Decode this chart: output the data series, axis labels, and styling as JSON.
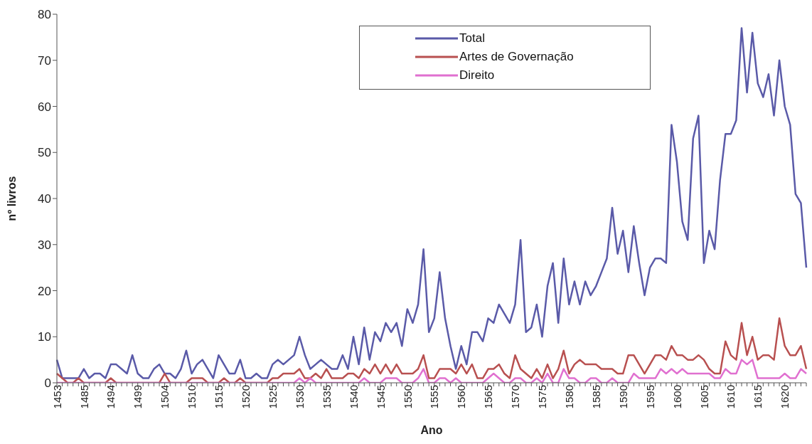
{
  "chart_data": {
    "type": "line",
    "xlabel": "Ano",
    "ylabel": "nº livros",
    "categories": [
      "1453",
      null,
      null,
      null,
      null,
      "1485",
      null,
      null,
      null,
      null,
      "1494",
      null,
      null,
      null,
      null,
      "1499",
      null,
      null,
      null,
      null,
      "1504",
      null,
      null,
      null,
      null,
      "1510",
      null,
      null,
      null,
      null,
      "1515",
      null,
      null,
      null,
      null,
      "1520",
      null,
      null,
      null,
      null,
      "1525",
      null,
      null,
      null,
      null,
      "1530",
      null,
      null,
      null,
      null,
      "1535",
      null,
      null,
      null,
      null,
      "1540",
      null,
      null,
      null,
      null,
      "1545",
      null,
      null,
      null,
      null,
      "1550",
      null,
      null,
      null,
      null,
      "1555",
      null,
      null,
      null,
      null,
      "1560",
      null,
      null,
      null,
      null,
      "1565",
      null,
      null,
      null,
      null,
      "1570",
      null,
      null,
      null,
      null,
      "1575",
      null,
      null,
      null,
      null,
      "1580",
      null,
      null,
      null,
      null,
      "1585",
      null,
      null,
      null,
      null,
      "1590",
      null,
      null,
      null,
      null,
      "1595",
      null,
      null,
      null,
      null,
      "1600",
      null,
      null,
      null,
      null,
      "1605",
      null,
      null,
      null,
      null,
      "1610",
      null,
      null,
      null,
      null,
      "1615",
      null,
      null,
      null,
      null,
      "1620",
      null,
      null,
      null,
      null
    ],
    "series": [
      {
        "name": "Total",
        "color": "#5a5aa8",
        "values": [
          5,
          1,
          1,
          1,
          1,
          3,
          1,
          2,
          2,
          1,
          4,
          4,
          3,
          2,
          6,
          2,
          1,
          1,
          3,
          4,
          2,
          2,
          1,
          3,
          7,
          2,
          4,
          5,
          3,
          1,
          6,
          4,
          2,
          2,
          5,
          1,
          1,
          2,
          1,
          1,
          4,
          5,
          4,
          5,
          6,
          10,
          6,
          3,
          4,
          5,
          4,
          3,
          3,
          6,
          3,
          10,
          4,
          12,
          5,
          11,
          9,
          13,
          11,
          13,
          8,
          16,
          13,
          17,
          29,
          11,
          14,
          24,
          14,
          8,
          3,
          8,
          4,
          11,
          11,
          9,
          14,
          13,
          17,
          15,
          13,
          17,
          31,
          11,
          12,
          17,
          10,
          21,
          26,
          13,
          27,
          17,
          22,
          17,
          22,
          19,
          21,
          24,
          27,
          38,
          28,
          33,
          24,
          34,
          26,
          19,
          25,
          27,
          27,
          26,
          56,
          48,
          35,
          31,
          53,
          58,
          26,
          33,
          29,
          44,
          54,
          54,
          57,
          77,
          63,
          76,
          65,
          62,
          67,
          58,
          70,
          60,
          56,
          41,
          39,
          25
        ]
      },
      {
        "name": "Artes de Governação",
        "color": "#b85050",
        "values": [
          2,
          1,
          0,
          0,
          1,
          0,
          0,
          0,
          0,
          0,
          1,
          0,
          0,
          0,
          0,
          0,
          0,
          0,
          0,
          0,
          2,
          0,
          0,
          0,
          0,
          1,
          1,
          1,
          0,
          0,
          0,
          1,
          0,
          0,
          1,
          0,
          0,
          0,
          0,
          0,
          1,
          1,
          2,
          2,
          2,
          3,
          1,
          1,
          2,
          1,
          3,
          1,
          1,
          1,
          2,
          2,
          1,
          3,
          2,
          4,
          2,
          4,
          2,
          4,
          2,
          2,
          2,
          3,
          6,
          1,
          1,
          3,
          3,
          3,
          2,
          4,
          2,
          4,
          1,
          1,
          3,
          3,
          4,
          2,
          1,
          6,
          3,
          2,
          1,
          3,
          1,
          4,
          1,
          3,
          7,
          2,
          4,
          5,
          4,
          4,
          4,
          3,
          3,
          3,
          2,
          2,
          6,
          6,
          4,
          2,
          4,
          6,
          6,
          5,
          8,
          6,
          6,
          5,
          5,
          6,
          5,
          3,
          2,
          2,
          9,
          6,
          5,
          13,
          6,
          10,
          5,
          6,
          6,
          5,
          14,
          8,
          6,
          6,
          8,
          3
        ]
      },
      {
        "name": "Direito",
        "color": "#e070d0",
        "values": [
          0,
          0,
          0,
          0,
          0,
          0,
          0,
          0,
          0,
          0,
          0,
          0,
          0,
          0,
          0,
          0,
          0,
          0,
          0,
          0,
          0,
          0,
          0,
          0,
          0,
          0,
          0,
          0,
          0,
          0,
          0,
          0,
          0,
          0,
          0,
          0,
          0,
          0,
          0,
          0,
          0,
          0,
          0,
          0,
          0,
          1,
          0,
          1,
          0,
          0,
          0,
          0,
          0,
          0,
          0,
          0,
          0,
          1,
          0,
          0,
          0,
          1,
          1,
          1,
          0,
          0,
          0,
          1,
          3,
          0,
          0,
          1,
          1,
          0,
          1,
          0,
          0,
          0,
          0,
          0,
          1,
          2,
          1,
          0,
          0,
          1,
          1,
          0,
          0,
          1,
          0,
          2,
          0,
          0,
          3,
          1,
          1,
          0,
          0,
          1,
          1,
          0,
          0,
          1,
          0,
          0,
          0,
          2,
          1,
          1,
          1,
          1,
          3,
          2,
          3,
          2,
          3,
          2,
          2,
          2,
          2,
          2,
          1,
          1,
          3,
          2,
          2,
          5,
          4,
          5,
          1,
          1,
          1,
          1,
          1,
          2,
          1,
          1,
          3,
          2
        ]
      }
    ],
    "ylim": [
      0,
      80
    ],
    "yticks": [
      0,
      10,
      20,
      30,
      40,
      50,
      60,
      70,
      80
    ],
    "legend": "top",
    "marker": "none",
    "line_style": "solid"
  }
}
